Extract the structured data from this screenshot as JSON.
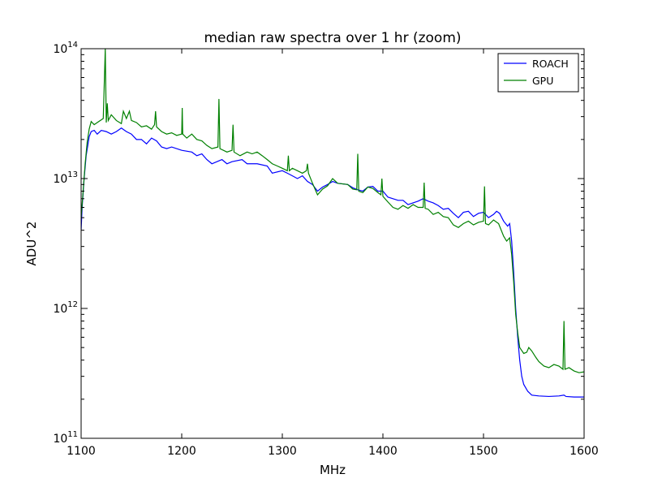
{
  "chart_data": {
    "type": "line",
    "title": "median raw spectra over 1 hr (zoom)",
    "xlabel": "MHz",
    "ylabel": "ADU^2",
    "xlim": [
      1100,
      1600
    ],
    "ylim": [
      100000000000,
      100000000000000
    ],
    "y_scale": "log",
    "grid": false,
    "legend_position": "top-right",
    "x_ticks": [
      1100,
      1200,
      1300,
      1400,
      1500,
      1600
    ],
    "x_tick_labels": [
      "1100",
      "1200",
      "1300",
      "1400",
      "1500",
      "1600"
    ],
    "y_ticks": [
      100000000000,
      1000000000000,
      10000000000000,
      100000000000000
    ],
    "y_tick_labels": [
      {
        "base": "10",
        "exp": "11"
      },
      {
        "base": "10",
        "exp": "12"
      },
      {
        "base": "10",
        "exp": "13"
      },
      {
        "base": "10",
        "exp": "14"
      }
    ],
    "series": [
      {
        "name": "ROACH",
        "color": "#0000ff",
        "points": [
          [
            1100,
            4000000000000.0
          ],
          [
            1101,
            6000000000000.0
          ],
          [
            1103,
            10000000000000.0
          ],
          [
            1105,
            15000000000000.0
          ],
          [
            1108,
            21000000000000.0
          ],
          [
            1110,
            23000000000000.0
          ],
          [
            1113,
            23500000000000.0
          ],
          [
            1116,
            22000000000000.0
          ],
          [
            1120,
            23500000000000.0
          ],
          [
            1125,
            23000000000000.0
          ],
          [
            1130,
            22000000000000.0
          ],
          [
            1135,
            23000000000000.0
          ],
          [
            1140,
            24500000000000.0
          ],
          [
            1145,
            23000000000000.0
          ],
          [
            1150,
            22000000000000.0
          ],
          [
            1155,
            20000000000000.0
          ],
          [
            1160,
            20000000000000.0
          ],
          [
            1165,
            18500000000000.0
          ],
          [
            1170,
            20500000000000.0
          ],
          [
            1175,
            19500000000000.0
          ],
          [
            1180,
            17500000000000.0
          ],
          [
            1185,
            17000000000000.0
          ],
          [
            1190,
            17500000000000.0
          ],
          [
            1200,
            16500000000000.0
          ],
          [
            1210,
            16000000000000.0
          ],
          [
            1215,
            15000000000000.0
          ],
          [
            1220,
            15500000000000.0
          ],
          [
            1225,
            14000000000000.0
          ],
          [
            1230,
            13000000000000.0
          ],
          [
            1240,
            14000000000000.0
          ],
          [
            1245,
            13000000000000.0
          ],
          [
            1250,
            13500000000000.0
          ],
          [
            1260,
            14000000000000.0
          ],
          [
            1265,
            13000000000000.0
          ],
          [
            1275,
            13000000000000.0
          ],
          [
            1285,
            12500000000000.0
          ],
          [
            1290,
            11000000000000.0
          ],
          [
            1300,
            11500000000000.0
          ],
          [
            1305,
            11000000000000.0
          ],
          [
            1310,
            10500000000000.0
          ],
          [
            1315,
            10000000000000.0
          ],
          [
            1320,
            10500000000000.0
          ],
          [
            1325,
            9500000000000.0
          ],
          [
            1330,
            9000000000000.0
          ],
          [
            1335,
            8000000000000.0
          ],
          [
            1340,
            8600000000000.0
          ],
          [
            1345,
            9000000000000.0
          ],
          [
            1350,
            9500000000000.0
          ],
          [
            1355,
            9200000000000.0
          ],
          [
            1365,
            9000000000000.0
          ],
          [
            1370,
            8500000000000.0
          ],
          [
            1375,
            8200000000000.0
          ],
          [
            1380,
            8000000000000.0
          ],
          [
            1385,
            8600000000000.0
          ],
          [
            1390,
            8700000000000.0
          ],
          [
            1395,
            8000000000000.0
          ],
          [
            1400,
            8000000000000.0
          ],
          [
            1405,
            7200000000000.0
          ],
          [
            1410,
            7000000000000.0
          ],
          [
            1415,
            6800000000000.0
          ],
          [
            1420,
            6800000000000.0
          ],
          [
            1425,
            6300000000000.0
          ],
          [
            1430,
            6500000000000.0
          ],
          [
            1435,
            6700000000000.0
          ],
          [
            1440,
            7000000000000.0
          ],
          [
            1445,
            6700000000000.0
          ],
          [
            1450,
            6500000000000.0
          ],
          [
            1455,
            6200000000000.0
          ],
          [
            1460,
            5800000000000.0
          ],
          [
            1465,
            5900000000000.0
          ],
          [
            1470,
            5400000000000.0
          ],
          [
            1475,
            5000000000000.0
          ],
          [
            1480,
            5500000000000.0
          ],
          [
            1485,
            5600000000000.0
          ],
          [
            1490,
            5100000000000.0
          ],
          [
            1495,
            5400000000000.0
          ],
          [
            1500,
            5500000000000.0
          ],
          [
            1505,
            5000000000000.0
          ],
          [
            1510,
            5300000000000.0
          ],
          [
            1513,
            5600000000000.0
          ],
          [
            1516,
            5400000000000.0
          ],
          [
            1520,
            4700000000000.0
          ],
          [
            1524,
            4300000000000.0
          ],
          [
            1526,
            4500000000000.0
          ],
          [
            1528,
            3300000000000.0
          ],
          [
            1530,
            1900000000000.0
          ],
          [
            1532,
            1000000000000.0
          ],
          [
            1534,
            600000000000.0
          ],
          [
            1536,
            400000000000.0
          ],
          [
            1538,
            300000000000.0
          ],
          [
            1540,
            260000000000.0
          ],
          [
            1544,
            230000000000.0
          ],
          [
            1548,
            215000000000.0
          ],
          [
            1555,
            212000000000.0
          ],
          [
            1565,
            210000000000.0
          ],
          [
            1575,
            212000000000.0
          ],
          [
            1580,
            215000000000.0
          ],
          [
            1582,
            210000000000.0
          ],
          [
            1590,
            208000000000.0
          ],
          [
            1600,
            208000000000.0
          ]
        ]
      },
      {
        "name": "GPU",
        "color": "#008000",
        "points": [
          [
            1100,
            5000000000000.0
          ],
          [
            1102,
            8000000000000.0
          ],
          [
            1104,
            13000000000000.0
          ],
          [
            1106,
            19000000000000.0
          ],
          [
            1108,
            24000000000000.0
          ],
          [
            1110,
            27500000000000.0
          ],
          [
            1113,
            26000000000000.0
          ],
          [
            1116,
            27000000000000.0
          ],
          [
            1119,
            28000000000000.0
          ],
          [
            1122,
            29000000000000.0
          ],
          [
            1124,
            100000000000000.0
          ],
          [
            1125,
            27000000000000.0
          ],
          [
            1126,
            38000000000000.0
          ],
          [
            1127,
            28000000000000.0
          ],
          [
            1130,
            31000000000000.0
          ],
          [
            1135,
            28000000000000.0
          ],
          [
            1140,
            26500000000000.0
          ],
          [
            1142,
            33000000000000.0
          ],
          [
            1145,
            29000000000000.0
          ],
          [
            1148,
            33000000000000.0
          ],
          [
            1150,
            28000000000000.0
          ],
          [
            1155,
            27000000000000.0
          ],
          [
            1160,
            25000000000000.0
          ],
          [
            1165,
            25500000000000.0
          ],
          [
            1170,
            24000000000000.0
          ],
          [
            1173,
            26000000000000.0
          ],
          [
            1174,
            33000000000000.0
          ],
          [
            1175,
            25000000000000.0
          ],
          [
            1180,
            23000000000000.0
          ],
          [
            1185,
            22000000000000.0
          ],
          [
            1190,
            22500000000000.0
          ],
          [
            1195,
            21500000000000.0
          ],
          [
            1200,
            22000000000000.0
          ],
          [
            1200.5,
            35000000000000.0
          ],
          [
            1201,
            22000000000000.0
          ],
          [
            1205,
            20500000000000.0
          ],
          [
            1210,
            22000000000000.0
          ],
          [
            1215,
            20000000000000.0
          ],
          [
            1220,
            19500000000000.0
          ],
          [
            1225,
            18000000000000.0
          ],
          [
            1230,
            17000000000000.0
          ],
          [
            1236,
            17500000000000.0
          ],
          [
            1237,
            41000000000000.0
          ],
          [
            1238,
            17000000000000.0
          ],
          [
            1245,
            16000000000000.0
          ],
          [
            1250,
            16500000000000.0
          ],
          [
            1251,
            26000000000000.0
          ],
          [
            1252,
            16000000000000.0
          ],
          [
            1258,
            15000000000000.0
          ],
          [
            1265,
            16000000000000.0
          ],
          [
            1270,
            15500000000000.0
          ],
          [
            1275,
            16000000000000.0
          ],
          [
            1280,
            15000000000000.0
          ],
          [
            1285,
            14000000000000.0
          ],
          [
            1290,
            13000000000000.0
          ],
          [
            1295,
            12500000000000.0
          ],
          [
            1300,
            12000000000000.0
          ],
          [
            1305,
            11500000000000.0
          ],
          [
            1306,
            15000000000000.0
          ],
          [
            1307,
            11500000000000.0
          ],
          [
            1310,
            12000000000000.0
          ],
          [
            1315,
            11500000000000.0
          ],
          [
            1320,
            11000000000000.0
          ],
          [
            1324,
            11500000000000.0
          ],
          [
            1325,
            13000000000000.0
          ],
          [
            1326,
            11000000000000.0
          ],
          [
            1330,
            9200000000000.0
          ],
          [
            1335,
            7500000000000.0
          ],
          [
            1340,
            8300000000000.0
          ],
          [
            1345,
            8800000000000.0
          ],
          [
            1350,
            10000000000000.0
          ],
          [
            1355,
            9200000000000.0
          ],
          [
            1360,
            9100000000000.0
          ],
          [
            1365,
            9000000000000.0
          ],
          [
            1370,
            8300000000000.0
          ],
          [
            1374,
            8200000000000.0
          ],
          [
            1375,
            15500000000000.0
          ],
          [
            1376,
            8000000000000.0
          ],
          [
            1380,
            7800000000000.0
          ],
          [
            1385,
            8600000000000.0
          ],
          [
            1390,
            8400000000000.0
          ],
          [
            1395,
            7800000000000.0
          ],
          [
            1398,
            7500000000000.0
          ],
          [
            1399,
            10000000000000.0
          ],
          [
            1400,
            7300000000000.0
          ],
          [
            1405,
            6600000000000.0
          ],
          [
            1410,
            6000000000000.0
          ],
          [
            1415,
            5800000000000.0
          ],
          [
            1420,
            6200000000000.0
          ],
          [
            1425,
            5900000000000.0
          ],
          [
            1430,
            6300000000000.0
          ],
          [
            1435,
            6000000000000.0
          ],
          [
            1440,
            6000000000000.0
          ],
          [
            1441,
            9300000000000.0
          ],
          [
            1442,
            5900000000000.0
          ],
          [
            1445,
            5800000000000.0
          ],
          [
            1450,
            5300000000000.0
          ],
          [
            1455,
            5500000000000.0
          ],
          [
            1460,
            5100000000000.0
          ],
          [
            1465,
            5000000000000.0
          ],
          [
            1470,
            4400000000000.0
          ],
          [
            1475,
            4200000000000.0
          ],
          [
            1480,
            4500000000000.0
          ],
          [
            1485,
            4700000000000.0
          ],
          [
            1490,
            4400000000000.0
          ],
          [
            1495,
            4600000000000.0
          ],
          [
            1500,
            4700000000000.0
          ],
          [
            1501,
            8700000000000.0
          ],
          [
            1502,
            4500000000000.0
          ],
          [
            1505,
            4400000000000.0
          ],
          [
            1510,
            4800000000000.0
          ],
          [
            1515,
            4500000000000.0
          ],
          [
            1520,
            3600000000000.0
          ],
          [
            1523,
            3300000000000.0
          ],
          [
            1526,
            3500000000000.0
          ],
          [
            1528,
            2600000000000.0
          ],
          [
            1530,
            1600000000000.0
          ],
          [
            1532,
            900000000000.0
          ],
          [
            1534,
            650000000000.0
          ],
          [
            1536,
            500000000000.0
          ],
          [
            1540,
            450000000000.0
          ],
          [
            1543,
            460000000000.0
          ],
          [
            1545,
            500000000000.0
          ],
          [
            1548,
            470000000000.0
          ],
          [
            1552,
            420000000000.0
          ],
          [
            1555,
            390000000000.0
          ],
          [
            1560,
            360000000000.0
          ],
          [
            1565,
            350000000000.0
          ],
          [
            1570,
            370000000000.0
          ],
          [
            1575,
            360000000000.0
          ],
          [
            1579,
            340000000000.0
          ],
          [
            1580,
            800000000000.0
          ],
          [
            1581,
            340000000000.0
          ],
          [
            1585,
            350000000000.0
          ],
          [
            1590,
            330000000000.0
          ],
          [
            1595,
            320000000000.0
          ],
          [
            1600,
            325000000000.0
          ]
        ]
      }
    ]
  }
}
